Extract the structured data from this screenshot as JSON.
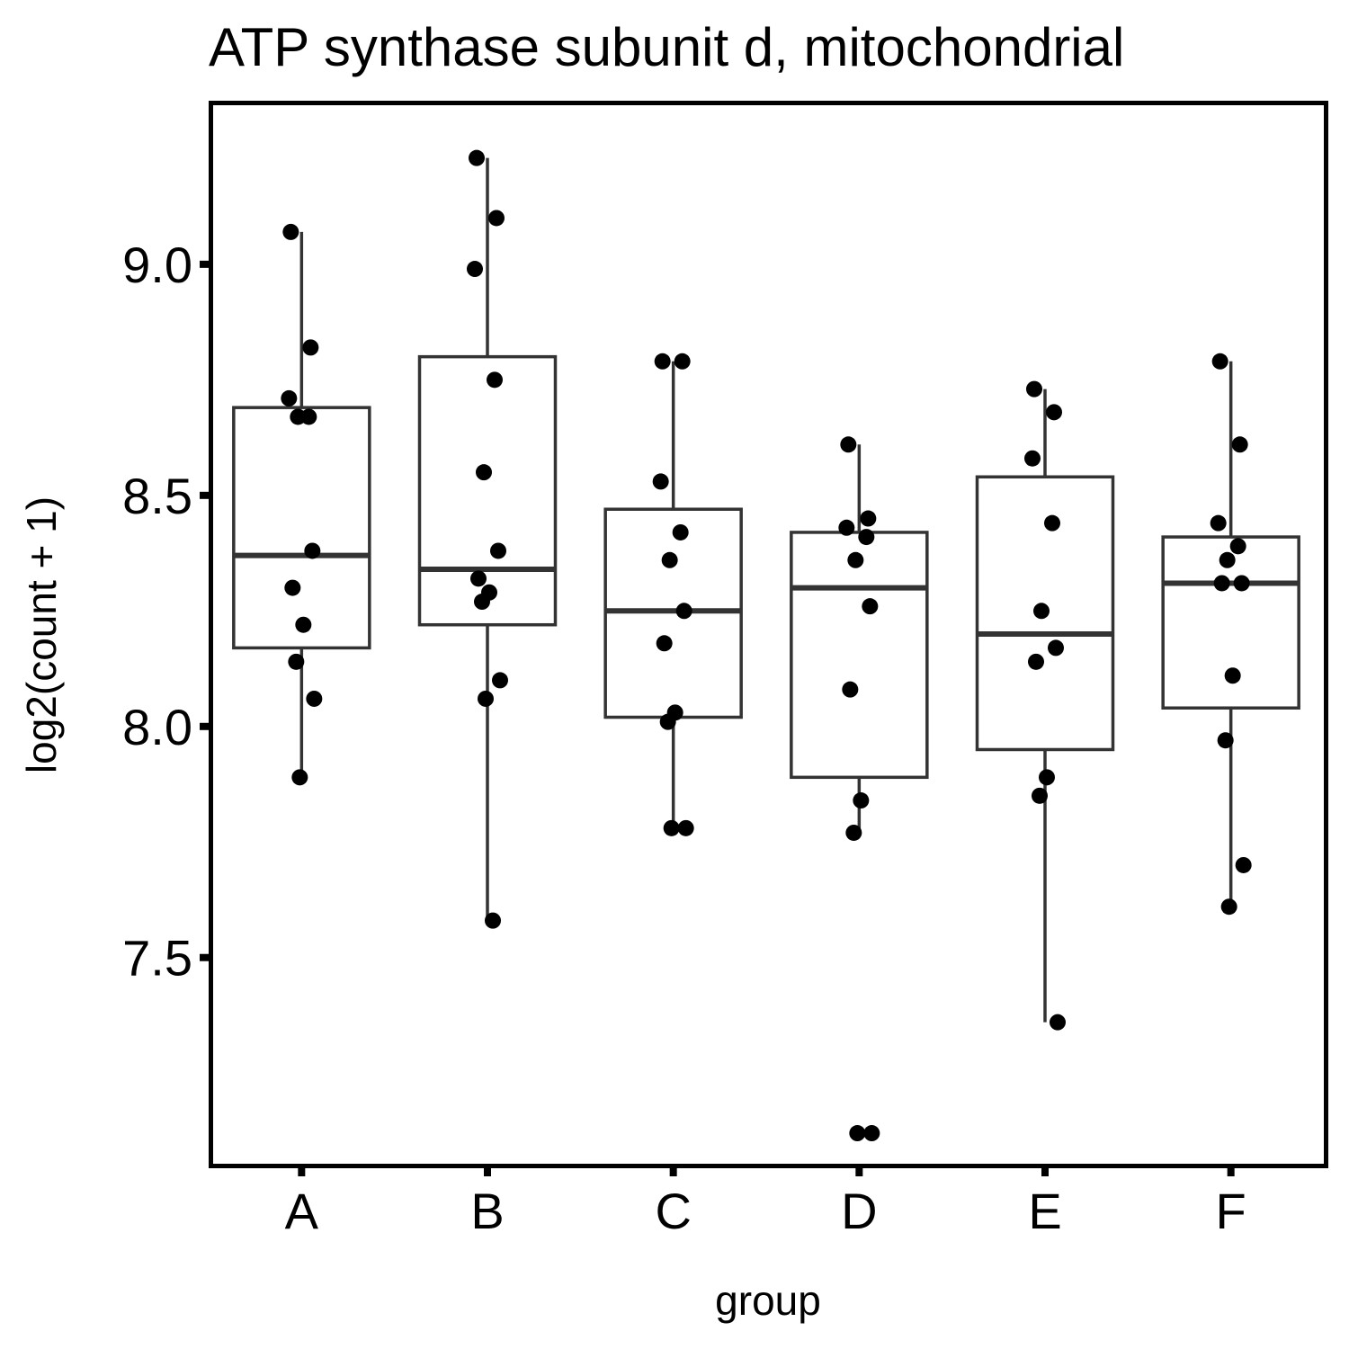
{
  "chart_data": {
    "type": "boxplot",
    "title": "ATP synthase subunit d, mitochondrial",
    "xlabel": "group",
    "ylabel": "log2(count + 1)",
    "categories": [
      "A",
      "B",
      "C",
      "D",
      "E",
      "F"
    ],
    "ylim": [
      7.05,
      9.35
    ],
    "yticks": [
      7.5,
      8.0,
      8.5,
      9.0
    ],
    "ytick_labels": [
      "7.5",
      "8.0",
      "8.5",
      "9.0"
    ],
    "grid": false,
    "point_color": "#000000",
    "box_color": "#333333",
    "boxes": [
      {
        "group": "A",
        "whisker_low": 7.89,
        "q1": 8.17,
        "median": 8.37,
        "q3": 8.69,
        "whisker_high": 9.07
      },
      {
        "group": "B",
        "whisker_low": 7.58,
        "q1": 8.22,
        "median": 8.34,
        "q3": 8.8,
        "whisker_high": 9.23
      },
      {
        "group": "C",
        "whisker_low": 7.78,
        "q1": 8.02,
        "median": 8.25,
        "q3": 8.47,
        "whisker_high": 8.79
      },
      {
        "group": "D",
        "whisker_low": 7.77,
        "q1": 7.89,
        "median": 8.3,
        "q3": 8.42,
        "whisker_high": 8.61
      },
      {
        "group": "E",
        "whisker_low": 7.36,
        "q1": 7.95,
        "median": 8.2,
        "q3": 8.54,
        "whisker_high": 8.73
      },
      {
        "group": "F",
        "whisker_low": 7.61,
        "q1": 8.04,
        "median": 8.31,
        "q3": 8.41,
        "whisker_high": 8.79
      }
    ],
    "points": [
      {
        "group": "A",
        "values": [
          9.07,
          8.82,
          8.71,
          8.67,
          8.67,
          8.38,
          8.3,
          8.22,
          8.14,
          8.06,
          7.89
        ]
      },
      {
        "group": "B",
        "values": [
          9.23,
          9.1,
          8.99,
          8.75,
          8.55,
          8.38,
          8.32,
          8.29,
          8.27,
          8.1,
          8.06,
          7.58
        ]
      },
      {
        "group": "C",
        "values": [
          8.79,
          8.79,
          8.53,
          8.42,
          8.36,
          8.25,
          8.18,
          8.03,
          8.01,
          7.78,
          7.78
        ]
      },
      {
        "group": "D",
        "values": [
          8.61,
          8.45,
          8.43,
          8.41,
          8.36,
          8.26,
          8.08,
          7.84,
          7.77,
          7.12,
          7.12
        ]
      },
      {
        "group": "E",
        "values": [
          8.73,
          8.68,
          8.58,
          8.44,
          8.25,
          8.17,
          8.14,
          7.89,
          7.85,
          7.36
        ]
      },
      {
        "group": "F",
        "values": [
          8.79,
          8.61,
          8.44,
          8.39,
          8.36,
          8.31,
          8.31,
          8.11,
          7.97,
          7.7,
          7.61
        ]
      }
    ]
  }
}
